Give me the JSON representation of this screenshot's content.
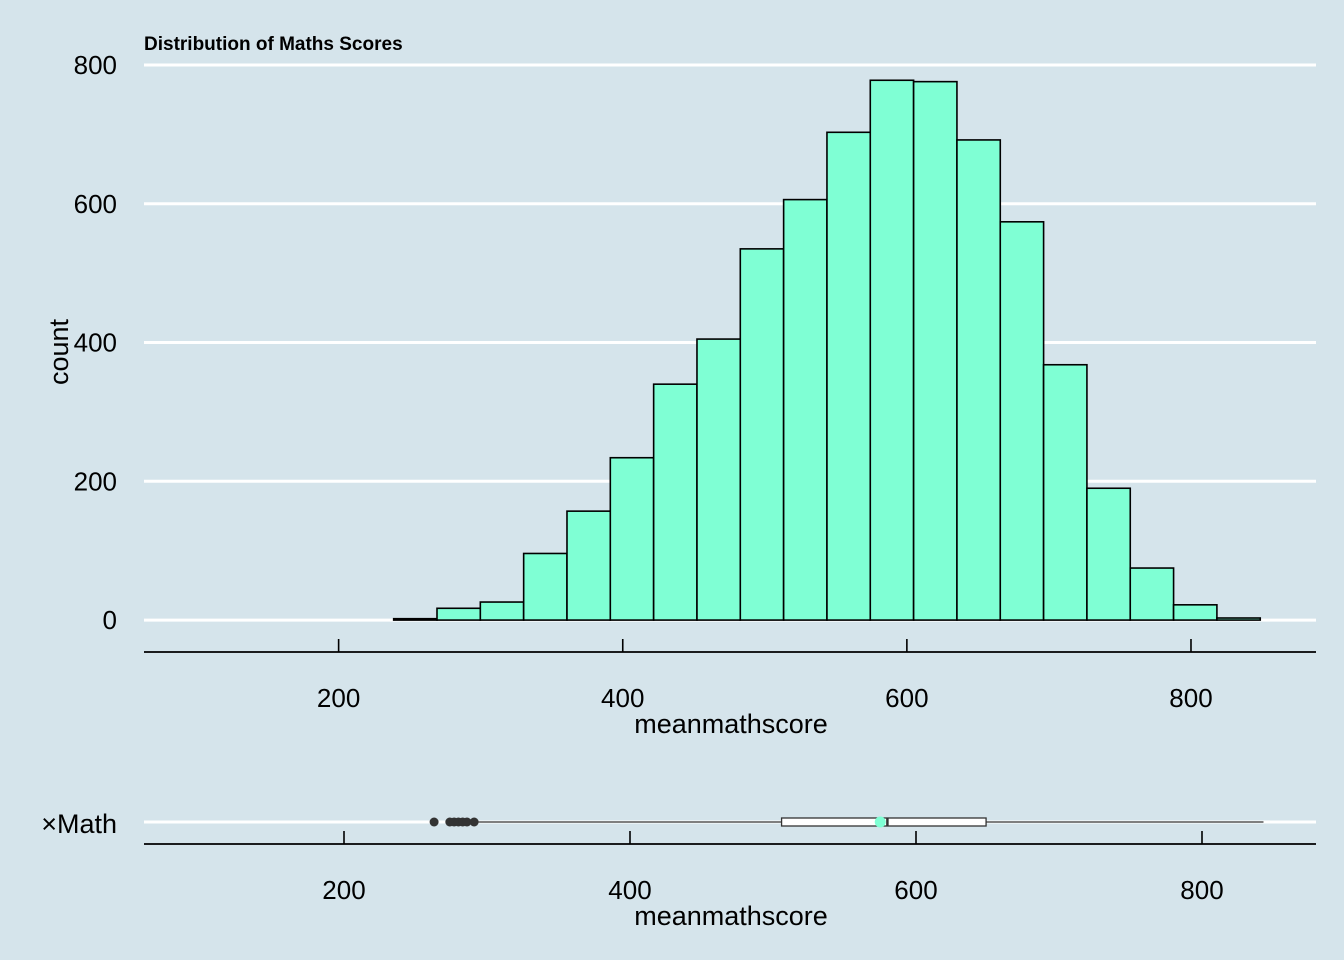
{
  "colors": {
    "background": "#d5e4eb",
    "bar_fill": "#7fffd4",
    "bar_stroke": "#000000",
    "grid": "#ffffff",
    "axis": "#000000",
    "outlier": "#333333",
    "mean_point": "#7fffd4"
  },
  "chart_data": [
    {
      "type": "histogram",
      "title": "Distribution of Maths Scores",
      "xlabel": "meanmathscore",
      "ylabel": "count",
      "xlim": [
        63,
        888
      ],
      "ylim": [
        -46,
        800
      ],
      "xticks": [
        200,
        400,
        600,
        800
      ],
      "yticks": [
        0,
        200,
        400,
        600,
        800
      ],
      "grid": "horizontal major",
      "bins": [
        {
          "start": 238.75,
          "end": 269.25,
          "count": 2
        },
        {
          "start": 269.25,
          "end": 299.75,
          "count": 17
        },
        {
          "start": 299.75,
          "end": 330.25,
          "count": 26
        },
        {
          "start": 330.25,
          "end": 360.75,
          "count": 96
        },
        {
          "start": 360.75,
          "end": 391.25,
          "count": 157
        },
        {
          "start": 391.25,
          "end": 421.75,
          "count": 234
        },
        {
          "start": 421.75,
          "end": 452.25,
          "count": 340
        },
        {
          "start": 452.25,
          "end": 482.75,
          "count": 405
        },
        {
          "start": 482.75,
          "end": 513.25,
          "count": 535
        },
        {
          "start": 513.25,
          "end": 543.75,
          "count": 606
        },
        {
          "start": 543.75,
          "end": 574.25,
          "count": 703
        },
        {
          "start": 574.25,
          "end": 604.75,
          "count": 778
        },
        {
          "start": 604.75,
          "end": 635.25,
          "count": 776
        },
        {
          "start": 635.25,
          "end": 665.75,
          "count": 692
        },
        {
          "start": 665.75,
          "end": 696.25,
          "count": 574
        },
        {
          "start": 696.25,
          "end": 726.75,
          "count": 368
        },
        {
          "start": 726.75,
          "end": 757.25,
          "count": 190
        },
        {
          "start": 757.25,
          "end": 787.75,
          "count": 75
        },
        {
          "start": 787.75,
          "end": 818.25,
          "count": 22
        },
        {
          "start": 818.25,
          "end": 848.75,
          "count": 3
        }
      ]
    },
    {
      "type": "boxplot",
      "category": "×Math",
      "xlabel": "meanmathscore",
      "xlim": [
        63,
        888
      ],
      "xticks": [
        200,
        400,
        600,
        800
      ],
      "min_whisker": 293,
      "q1": 506,
      "median": 580,
      "q3": 649,
      "max_whisker": 843,
      "mean": 575,
      "outliers": [
        263,
        274,
        277,
        280,
        283,
        286,
        291
      ]
    }
  ]
}
